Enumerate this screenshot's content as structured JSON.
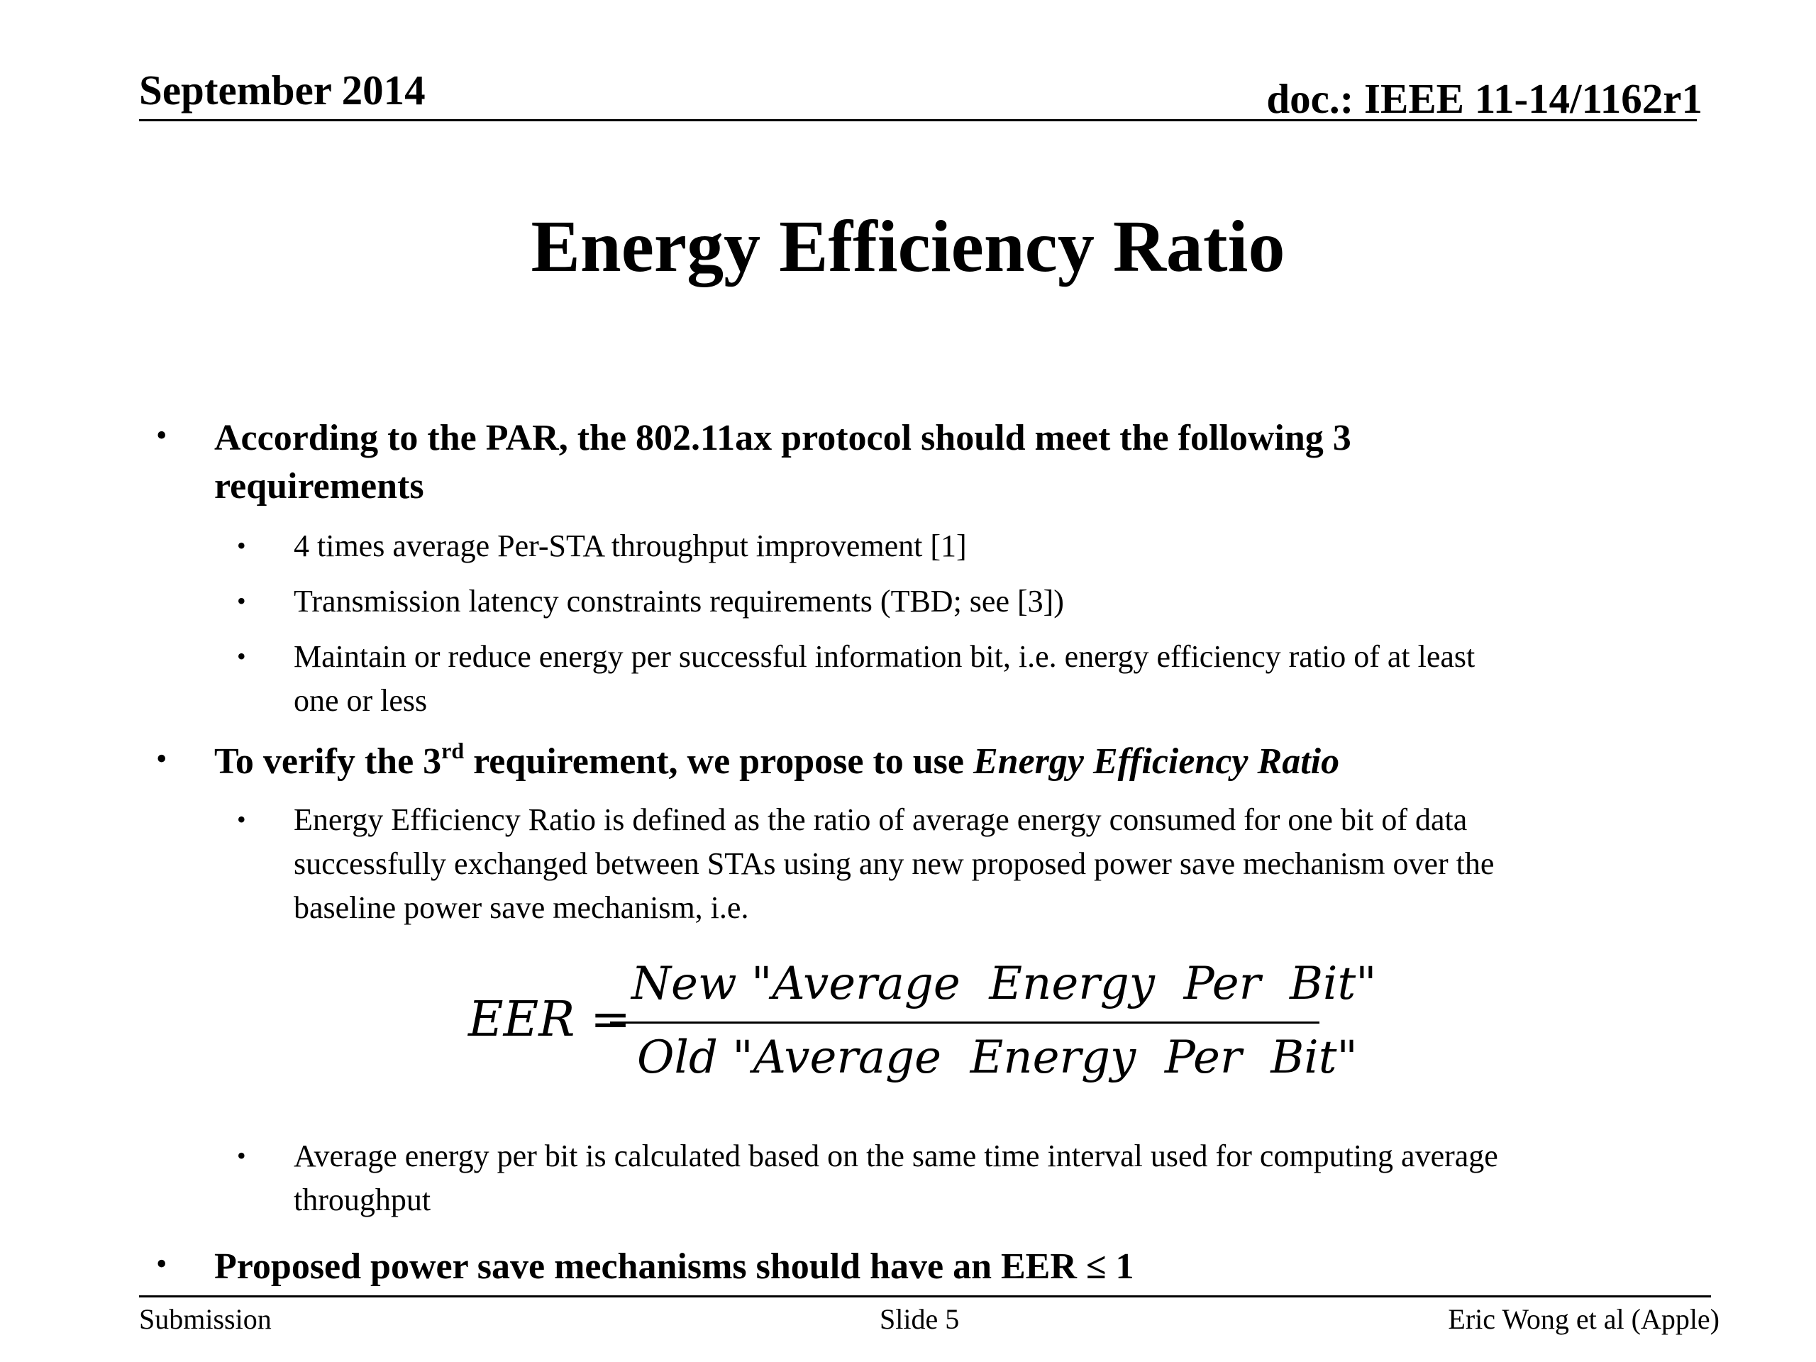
{
  "header": {
    "date": "September 2014",
    "doc_id": "doc.: IEEE 11-14/1162r1"
  },
  "title": "Energy Efficiency Ratio",
  "bullets": {
    "b1": {
      "dot": "•",
      "line1": "According to the PAR, the 802.11ax protocol should meet the following 3",
      "line2": "requirements",
      "sub": [
        {
          "dot": "•",
          "line1": "4 times average Per-STA throughput improvement [1]"
        },
        {
          "dot": "•",
          "line1": "Transmission latency constraints requirements (TBD; see [3])"
        },
        {
          "dot": "•",
          "line1": "Maintain or reduce energy per successful information bit, i.e. energy efficiency ratio of at least",
          "line2": "one or less"
        }
      ]
    },
    "b2": {
      "dot": "•",
      "prefix": "To verify the 3",
      "sup": "rd",
      "middle": " requirement, we propose to use ",
      "emph": "Energy Efficiency Ratio",
      "sub": [
        {
          "dot": "•",
          "line1": "Energy Efficiency Ratio is defined as the ratio of average energy consumed for one bit of data",
          "line2": "successfully exchanged between STAs using any new proposed power save mechanism over the",
          "line3": "baseline power save mechanism, i.e."
        },
        {
          "dot": "•",
          "line1": "Average energy per bit is calculated based on the same time interval used for computing average",
          "line2": "throughput"
        }
      ]
    },
    "b3": {
      "dot": "•",
      "line1": "Proposed power save mechanisms should have an EER ≤ 1"
    }
  },
  "equation": {
    "lhs": "EER =",
    "numerator": "New \"Average  Energy  Per  Bit\"",
    "denominator": "Old \"Average  Energy  Per  Bit\""
  },
  "footer": {
    "left": "Submission",
    "center": "Slide 5",
    "right": "Eric Wong et al (Apple)"
  }
}
